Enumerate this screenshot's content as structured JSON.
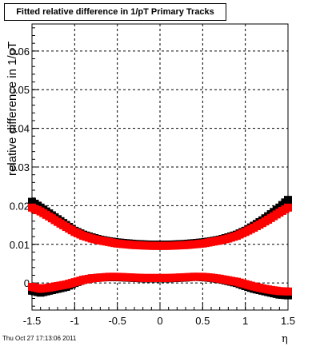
{
  "title": "Fitted relative difference in 1/pT  Primary Tracks",
  "timestamp": "Thu Oct 27 17:13:06 2011",
  "chart_data": {
    "type": "scatter",
    "xlabel": "η",
    "ylabel": "relative difference in 1/pT",
    "xlim": [
      -1.5,
      1.5
    ],
    "ylim": [
      -0.007,
      0.067
    ],
    "xticks": [
      "-1.5",
      "-1",
      "-0.5",
      "0",
      "0.5",
      "1",
      "1.5"
    ],
    "yticks": [
      "0",
      "0.01",
      "0.02",
      "0.03",
      "0.04",
      "0.05",
      "0.06"
    ],
    "grid": true,
    "colors": {
      "black": "#000000",
      "red": "#ff0000",
      "grid": "#000000"
    },
    "series": [
      {
        "color": "black",
        "style": "squares",
        "x": [
          -1.5,
          -1.4,
          -1.3,
          -1.2,
          -1.1,
          -1.0,
          -0.9,
          -0.8,
          -0.7,
          -0.6,
          -0.5,
          -0.4,
          -0.3,
          -0.2,
          -0.1,
          0.0,
          0.1,
          0.2,
          0.3,
          0.4,
          0.5,
          0.6,
          0.7,
          0.8,
          0.9,
          1.0,
          1.1,
          1.2,
          1.3,
          1.4,
          1.5
        ],
        "y": [
          0.021,
          0.0195,
          0.018,
          0.0165,
          0.015,
          0.0135,
          0.0125,
          0.0118,
          0.0112,
          0.0108,
          0.0105,
          0.0103,
          0.0101,
          0.01,
          0.0099,
          0.0099,
          0.0099,
          0.01,
          0.0101,
          0.0103,
          0.0105,
          0.0108,
          0.0112,
          0.0118,
          0.0125,
          0.0135,
          0.0148,
          0.0162,
          0.0178,
          0.0195,
          0.0215
        ]
      },
      {
        "color": "red",
        "style": "squares",
        "x": [
          -1.5,
          -1.4,
          -1.3,
          -1.2,
          -1.1,
          -1.0,
          -0.9,
          -0.8,
          -0.7,
          -0.6,
          -0.5,
          -0.4,
          -0.3,
          -0.2,
          -0.1,
          0.0,
          0.1,
          0.2,
          0.3,
          0.4,
          0.5,
          0.6,
          0.7,
          0.8,
          0.9,
          1.0,
          1.1,
          1.2,
          1.3,
          1.4,
          1.5
        ],
        "y": [
          0.0195,
          0.0185,
          0.0172,
          0.0158,
          0.0145,
          0.0132,
          0.0122,
          0.0115,
          0.011,
          0.0106,
          0.0102,
          0.01,
          0.0098,
          0.0097,
          0.0096,
          0.0096,
          0.0096,
          0.0097,
          0.0098,
          0.01,
          0.0102,
          0.0106,
          0.011,
          0.0115,
          0.0122,
          0.0132,
          0.0143,
          0.0155,
          0.0168,
          0.0182,
          0.0195
        ]
      },
      {
        "color": "black",
        "style": "squares",
        "x": [
          -1.5,
          -1.4,
          -1.3,
          -1.2,
          -1.1,
          -1.0,
          -0.9,
          -0.8,
          -0.7,
          -0.6,
          -0.5,
          -0.4,
          -0.3,
          -0.2,
          -0.1,
          0.0,
          0.1,
          0.2,
          0.3,
          0.4,
          0.5,
          0.6,
          0.7,
          0.8,
          0.9,
          1.0,
          1.1,
          1.2,
          1.3,
          1.4,
          1.5
        ],
        "y": [
          -0.002,
          -0.0025,
          -0.002,
          -0.0015,
          -0.001,
          0.0,
          0.0008,
          0.0012,
          0.0014,
          0.0015,
          0.0015,
          0.0014,
          0.0013,
          0.0012,
          0.0012,
          0.0012,
          0.0012,
          0.0013,
          0.0014,
          0.0016,
          0.0015,
          0.0013,
          0.001,
          0.0005,
          0.0,
          -0.0008,
          -0.0015,
          -0.002,
          -0.0025,
          -0.003,
          -0.0032
        ]
      },
      {
        "color": "red",
        "style": "squares",
        "x": [
          -1.5,
          -1.4,
          -1.3,
          -1.2,
          -1.1,
          -1.0,
          -0.9,
          -0.8,
          -0.7,
          -0.6,
          -0.5,
          -0.4,
          -0.3,
          -0.2,
          -0.1,
          0.0,
          0.1,
          0.2,
          0.3,
          0.4,
          0.5,
          0.6,
          0.7,
          0.8,
          0.9,
          1.0,
          1.1,
          1.2,
          1.3,
          1.4,
          1.5
        ],
        "y": [
          -0.001,
          -0.0015,
          -0.0012,
          -0.0008,
          -0.0004,
          0.0002,
          0.0008,
          0.0012,
          0.0014,
          0.0016,
          0.0016,
          0.0015,
          0.0014,
          0.0013,
          0.0013,
          0.0013,
          0.0013,
          0.0014,
          0.0015,
          0.0016,
          0.0016,
          0.0014,
          0.0011,
          0.0007,
          0.0003,
          -0.0003,
          -0.0009,
          -0.0014,
          -0.0018,
          -0.0021,
          -0.0022
        ]
      }
    ]
  }
}
